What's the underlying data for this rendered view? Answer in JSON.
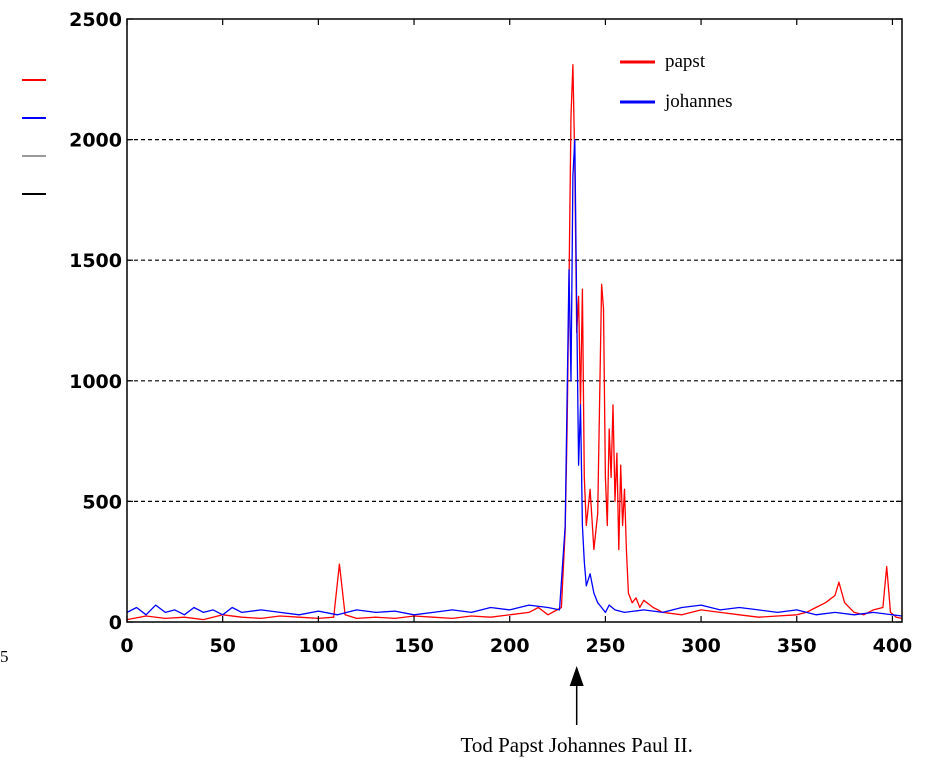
{
  "chart_data": {
    "type": "line",
    "title": "",
    "xlabel": "",
    "ylabel": "",
    "xlim": [
      0,
      405
    ],
    "ylim": [
      0,
      2500
    ],
    "x_ticks": [
      0,
      50,
      100,
      150,
      200,
      250,
      300,
      350,
      400
    ],
    "y_ticks": [
      0,
      500,
      1000,
      1500,
      2000,
      2500
    ],
    "grid": "horizontal-dashed",
    "legend_position": "top-right",
    "series": [
      {
        "name": "papst",
        "color": "#ff0000",
        "points": [
          [
            0,
            10
          ],
          [
            10,
            25
          ],
          [
            20,
            15
          ],
          [
            30,
            20
          ],
          [
            40,
            10
          ],
          [
            50,
            30
          ],
          [
            60,
            20
          ],
          [
            70,
            15
          ],
          [
            80,
            25
          ],
          [
            90,
            20
          ],
          [
            100,
            15
          ],
          [
            108,
            20
          ],
          [
            111,
            240
          ],
          [
            114,
            30
          ],
          [
            120,
            15
          ],
          [
            130,
            20
          ],
          [
            140,
            15
          ],
          [
            150,
            25
          ],
          [
            160,
            20
          ],
          [
            170,
            15
          ],
          [
            180,
            25
          ],
          [
            190,
            20
          ],
          [
            200,
            30
          ],
          [
            210,
            40
          ],
          [
            215,
            60
          ],
          [
            220,
            30
          ],
          [
            227,
            60
          ],
          [
            229,
            380
          ],
          [
            230,
            800
          ],
          [
            231,
            1400
          ],
          [
            232,
            2100
          ],
          [
            233,
            2310
          ],
          [
            234,
            1900
          ],
          [
            235,
            1200
          ],
          [
            236,
            1350
          ],
          [
            237,
            900
          ],
          [
            238,
            1380
          ],
          [
            239,
            600
          ],
          [
            240,
            400
          ],
          [
            242,
            550
          ],
          [
            244,
            300
          ],
          [
            246,
            450
          ],
          [
            248,
            1400
          ],
          [
            249,
            1300
          ],
          [
            250,
            600
          ],
          [
            251,
            400
          ],
          [
            252,
            800
          ],
          [
            253,
            600
          ],
          [
            254,
            900
          ],
          [
            255,
            500
          ],
          [
            256,
            700
          ],
          [
            257,
            300
          ],
          [
            258,
            650
          ],
          [
            259,
            400
          ],
          [
            260,
            550
          ],
          [
            261,
            300
          ],
          [
            262,
            120
          ],
          [
            264,
            80
          ],
          [
            266,
            100
          ],
          [
            268,
            60
          ],
          [
            270,
            90
          ],
          [
            275,
            60
          ],
          [
            280,
            40
          ],
          [
            290,
            30
          ],
          [
            300,
            50
          ],
          [
            310,
            40
          ],
          [
            320,
            30
          ],
          [
            330,
            20
          ],
          [
            340,
            25
          ],
          [
            350,
            30
          ],
          [
            355,
            40
          ],
          [
            360,
            60
          ],
          [
            365,
            80
          ],
          [
            370,
            110
          ],
          [
            372,
            165
          ],
          [
            375,
            80
          ],
          [
            380,
            40
          ],
          [
            385,
            30
          ],
          [
            390,
            50
          ],
          [
            395,
            60
          ],
          [
            397,
            230
          ],
          [
            399,
            40
          ],
          [
            402,
            20
          ],
          [
            405,
            15
          ]
        ]
      },
      {
        "name": "johannes",
        "color": "#0000ff",
        "points": [
          [
            0,
            40
          ],
          [
            5,
            60
          ],
          [
            10,
            30
          ],
          [
            15,
            70
          ],
          [
            20,
            40
          ],
          [
            25,
            50
          ],
          [
            30,
            30
          ],
          [
            35,
            60
          ],
          [
            40,
            40
          ],
          [
            45,
            50
          ],
          [
            50,
            30
          ],
          [
            55,
            60
          ],
          [
            60,
            40
          ],
          [
            70,
            50
          ],
          [
            80,
            40
          ],
          [
            90,
            30
          ],
          [
            100,
            45
          ],
          [
            110,
            30
          ],
          [
            120,
            50
          ],
          [
            130,
            40
          ],
          [
            140,
            45
          ],
          [
            150,
            30
          ],
          [
            160,
            40
          ],
          [
            170,
            50
          ],
          [
            180,
            40
          ],
          [
            190,
            60
          ],
          [
            200,
            50
          ],
          [
            210,
            70
          ],
          [
            220,
            60
          ],
          [
            226,
            50
          ],
          [
            229,
            400
          ],
          [
            231,
            1460
          ],
          [
            232,
            1000
          ],
          [
            233,
            1850
          ],
          [
            234,
            2000
          ],
          [
            235,
            1300
          ],
          [
            236,
            650
          ],
          [
            237,
            900
          ],
          [
            238,
            400
          ],
          [
            239,
            250
          ],
          [
            240,
            150
          ],
          [
            242,
            200
          ],
          [
            244,
            120
          ],
          [
            246,
            80
          ],
          [
            248,
            60
          ],
          [
            250,
            40
          ],
          [
            252,
            70
          ],
          [
            255,
            50
          ],
          [
            260,
            40
          ],
          [
            270,
            50
          ],
          [
            280,
            40
          ],
          [
            290,
            60
          ],
          [
            300,
            70
          ],
          [
            310,
            50
          ],
          [
            320,
            60
          ],
          [
            330,
            50
          ],
          [
            340,
            40
          ],
          [
            350,
            50
          ],
          [
            360,
            30
          ],
          [
            370,
            40
          ],
          [
            380,
            30
          ],
          [
            390,
            40
          ],
          [
            400,
            30
          ],
          [
            405,
            25
          ]
        ]
      }
    ],
    "annotations": [
      {
        "text": "Tod Papst Johannes Paul II.",
        "x": 235
      }
    ]
  },
  "margin_items": {
    "left_swatches": [
      "#ff0000",
      "#0000ff",
      "#999999",
      "#000000"
    ],
    "stray_text": "5"
  }
}
